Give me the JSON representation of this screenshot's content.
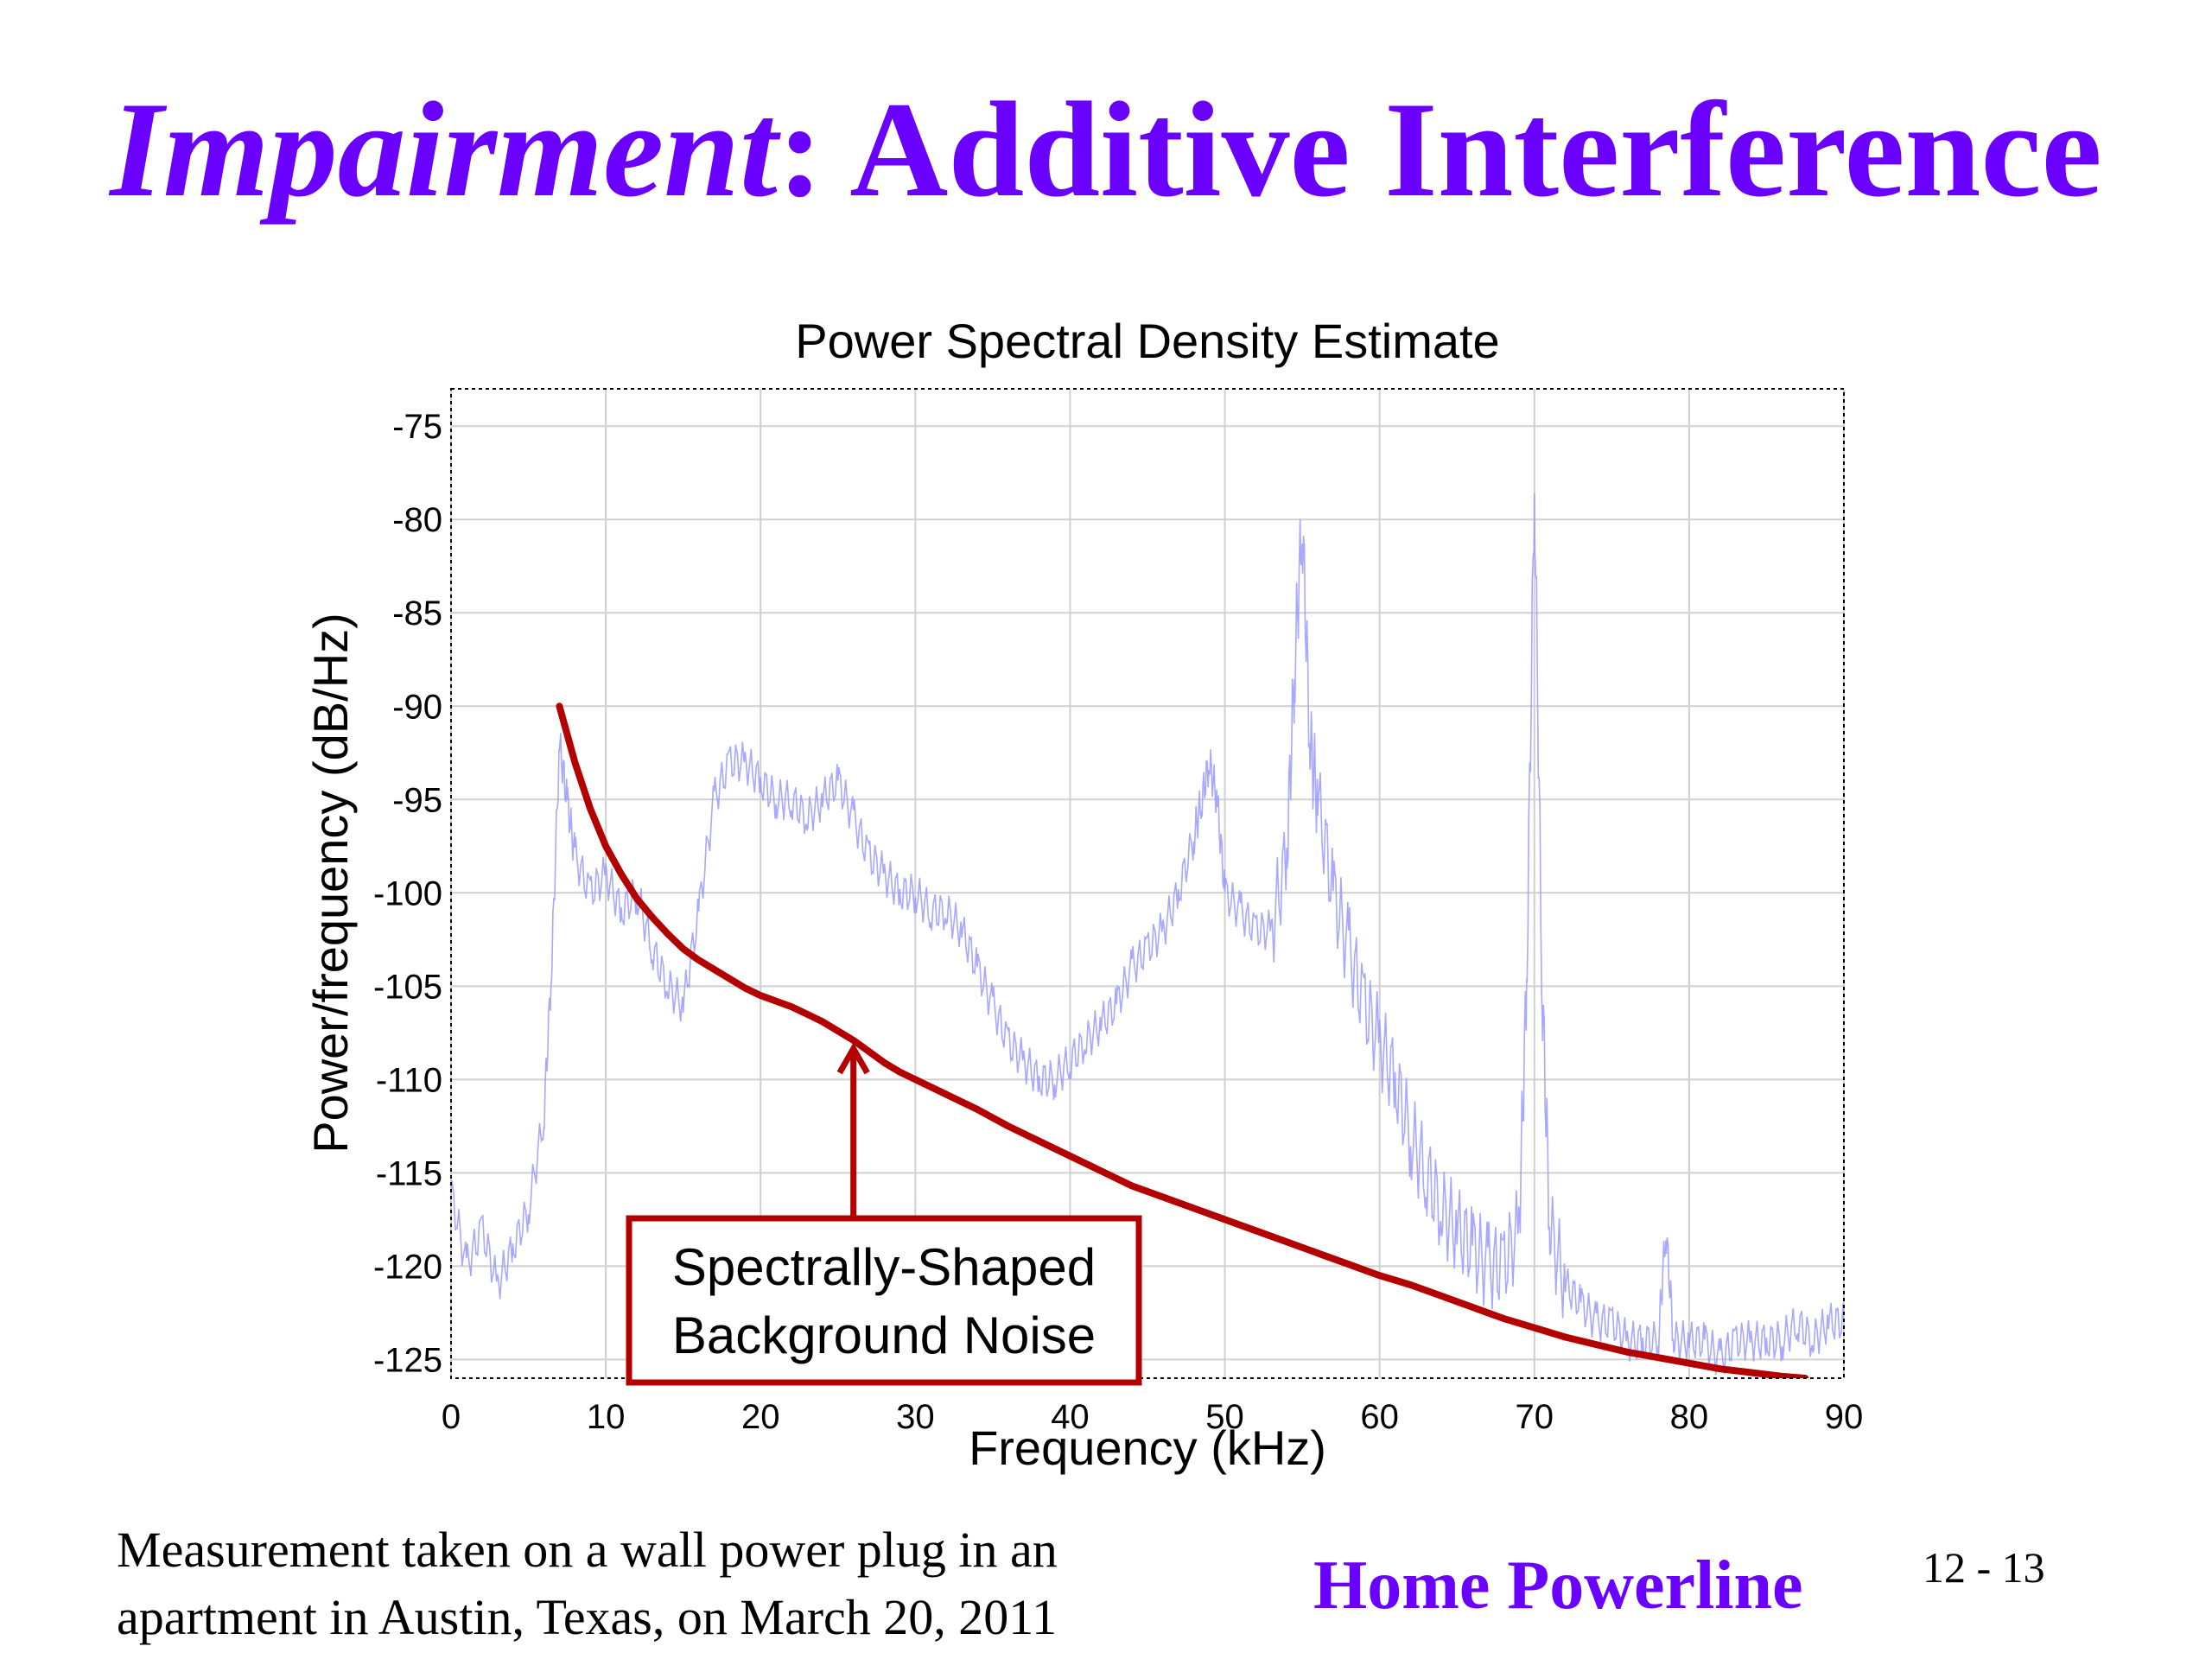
{
  "slide": {
    "title_emphasis": "Impairment",
    "title_rest": ": Additive Interference",
    "footnote_line1": "Measurement taken on a wall power plug in an",
    "footnote_line2": "apartment in Austin, Texas, on March 20, 2011",
    "course_label": "Home Powerline",
    "slide_number": "12 - 13"
  },
  "colors": {
    "title": "#6a00ff",
    "psd_trace": "#9999ff",
    "noise_curve": "#b30000",
    "callout_border": "#b30000",
    "grid": "#d0d0d0"
  },
  "chart_data": {
    "type": "line",
    "title": "Power Spectral Density Estimate",
    "xlabel": "Frequency (kHz)",
    "ylabel": "Power/frequency (dB/Hz)",
    "xlim": [
      0,
      90
    ],
    "ylim": [
      -126,
      -73
    ],
    "x_ticks": [
      0,
      10,
      20,
      30,
      40,
      50,
      60,
      70,
      80,
      90
    ],
    "y_ticks": [
      -75,
      -80,
      -85,
      -90,
      -95,
      -100,
      -105,
      -110,
      -115,
      -120,
      -125
    ],
    "grid": true,
    "series": [
      {
        "style": "thin light-blue line",
        "x": [
          0,
          1,
          2,
          3,
          4,
          5,
          6,
          6.5,
          7,
          7.5,
          8,
          9,
          10,
          11,
          12,
          13,
          14,
          15,
          16,
          17,
          18,
          19,
          20,
          21,
          22,
          23,
          24,
          25,
          26,
          27,
          28,
          29,
          30,
          31,
          32,
          33,
          34,
          35,
          36,
          37,
          38,
          39,
          40,
          41,
          42,
          43,
          44,
          45,
          46,
          47,
          48,
          48.5,
          49,
          49.5,
          50,
          51,
          52,
          53,
          54,
          54.5,
          55,
          55.5,
          56,
          57,
          58,
          59,
          60,
          61,
          62,
          63,
          64,
          65,
          66,
          67,
          68,
          69,
          69.5,
          70,
          70.5,
          71,
          72,
          73,
          74,
          75,
          76,
          77,
          78,
          78.5,
          79,
          80,
          81,
          82,
          83,
          84,
          85,
          86,
          87,
          88,
          89,
          90
        ],
        "y": [
          -116,
          -120,
          -118,
          -121,
          -119,
          -117,
          -112,
          -104,
          -92,
          -95,
          -98,
          -100,
          -99,
          -101,
          -100,
          -103,
          -105,
          -106,
          -101,
          -95,
          -93,
          -93,
          -94,
          -95,
          -95,
          -96,
          -95,
          -94,
          -96,
          -98,
          -99,
          -100,
          -100,
          -101,
          -101,
          -102,
          -104,
          -106,
          -108,
          -109,
          -110,
          -110,
          -109,
          -108,
          -107,
          -106,
          -104,
          -103,
          -102,
          -100,
          -97,
          -95,
          -93,
          -95,
          -100,
          -101,
          -102,
          -102,
          -98,
          -88,
          -80,
          -92,
          -95,
          -100,
          -103,
          -106,
          -108,
          -110,
          -113,
          -115,
          -117,
          -118,
          -119,
          -120,
          -120,
          -118,
          -105,
          -78,
          -105,
          -118,
          -121,
          -122,
          -123,
          -123,
          -124,
          -124,
          -124,
          -118,
          -124,
          -124,
          -124,
          -125,
          -124,
          -124,
          -124,
          -124,
          -123,
          -124,
          -123,
          -123
        ]
      },
      {
        "style": "thick dark-red line",
        "x": [
          7,
          8,
          9,
          10,
          11,
          12,
          13,
          14,
          15,
          16,
          17,
          18,
          19,
          20,
          21,
          22,
          23,
          24,
          25,
          26,
          27,
          28,
          29,
          30,
          32,
          34,
          36,
          38,
          40,
          42,
          44,
          46,
          48,
          50,
          52,
          54,
          56,
          58,
          60,
          62,
          64,
          66,
          68,
          70,
          72,
          74,
          76,
          78,
          80,
          82,
          84,
          86,
          87.5
        ],
        "y": [
          -90,
          -93,
          -95.5,
          -97.5,
          -99,
          -100.3,
          -101.3,
          -102.2,
          -103,
          -103.6,
          -104.1,
          -104.6,
          -105.1,
          -105.5,
          -105.8,
          -106.1,
          -106.5,
          -106.9,
          -107.4,
          -107.9,
          -108.5,
          -109.1,
          -109.6,
          -110,
          -110.8,
          -111.6,
          -112.5,
          -113.3,
          -114.1,
          -114.9,
          -115.7,
          -116.3,
          -116.9,
          -117.5,
          -118.1,
          -118.7,
          -119.3,
          -119.9,
          -120.5,
          -121,
          -121.6,
          -122.2,
          -122.8,
          -123.3,
          -123.8,
          -124.2,
          -124.6,
          -124.9,
          -125.2,
          -125.5,
          -125.7,
          -125.9,
          -126
        ]
      }
    ],
    "annotation": {
      "text_line1": "Spectrally-Shaped",
      "text_line2": "Background Noise",
      "arrow_target": {
        "x": 26,
        "y": -107.7
      }
    }
  }
}
